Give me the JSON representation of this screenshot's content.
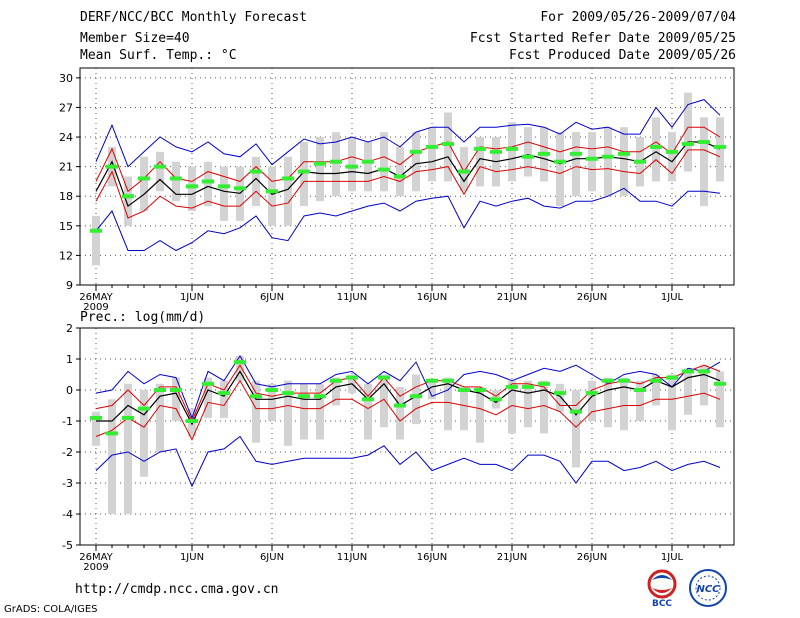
{
  "header": {
    "title": "DERF/NCC/BCC Monthly Forecast",
    "member_size": "Member Size=40",
    "variable": "Mean Surf. Temp.: °C",
    "period": "For 2009/05/26-2009/07/04",
    "started": "Fcst Started Refer Date 2009/05/25",
    "produced": "Fcst Produced Date 2009/05/26"
  },
  "footer": {
    "url": "http://cmdp.ncc.cma.gov.cn",
    "grads": "GrADS: COLA/IGES",
    "logo_bcc": "BCC",
    "logo_ncc": "NCC"
  },
  "colors": {
    "envelope": "#0000cc",
    "spread": "#dd0000",
    "mean": "#000000",
    "median": "#33ee33",
    "box": "#d3d3d3"
  },
  "chart_data": [
    {
      "type": "line",
      "title": "Mean Surf. Temp.: °C",
      "x_tick_labels": [
        "26MAY",
        "1JUN",
        "6JUN",
        "11JUN",
        "16JUN",
        "21JUN",
        "26JUN",
        "1JUL"
      ],
      "x_tick_days": [
        0,
        6,
        11,
        16,
        21,
        26,
        31,
        36
      ],
      "year_label": "2009",
      "days": 40,
      "ylim": [
        9,
        31
      ],
      "yticks": [
        9,
        12,
        15,
        18,
        21,
        24,
        27,
        30
      ],
      "series": [
        {
          "name": "max",
          "values": [
            21.5,
            25.2,
            21.0,
            22.5,
            24.0,
            23.0,
            22.5,
            23.5,
            22.3,
            22.0,
            23.3,
            21.2,
            22.5,
            23.8,
            23.3,
            23.5,
            24.0,
            23.5,
            24.0,
            23.0,
            24.5,
            25.0,
            25.0,
            23.5,
            25.0,
            25.0,
            25.2,
            25.3,
            25.0,
            24.3,
            25.5,
            24.8,
            25.0,
            24.3,
            24.3,
            27.0,
            25.0,
            27.3,
            27.8,
            26.2
          ]
        },
        {
          "name": "upper",
          "values": [
            19.5,
            22.8,
            18.5,
            19.8,
            21.5,
            19.8,
            19.5,
            20.5,
            20.0,
            19.5,
            21.0,
            19.5,
            19.8,
            21.5,
            21.5,
            21.5,
            22.0,
            21.5,
            22.0,
            21.2,
            22.5,
            23.0,
            23.5,
            20.5,
            23.0,
            22.8,
            23.0,
            23.5,
            23.0,
            22.5,
            23.0,
            22.8,
            23.0,
            22.5,
            22.5,
            23.5,
            22.3,
            25.0,
            25.0,
            24.0
          ]
        },
        {
          "name": "mean",
          "values": [
            18.5,
            21.5,
            17.0,
            18.2,
            19.7,
            18.2,
            18.2,
            19.0,
            18.5,
            18.3,
            19.8,
            18.2,
            18.7,
            20.5,
            20.3,
            20.3,
            20.5,
            20.3,
            20.8,
            20.0,
            21.3,
            21.5,
            22.0,
            19.5,
            21.8,
            21.5,
            21.8,
            22.2,
            21.8,
            21.3,
            21.8,
            21.8,
            22.0,
            21.8,
            21.5,
            22.5,
            21.5,
            23.5,
            23.5,
            22.8
          ]
        },
        {
          "name": "lower",
          "values": [
            17.5,
            20.5,
            15.8,
            16.5,
            18.0,
            17.0,
            16.8,
            17.5,
            17.0,
            17.0,
            18.5,
            17.0,
            17.3,
            19.5,
            19.5,
            19.5,
            19.5,
            19.5,
            20.0,
            19.5,
            20.5,
            20.7,
            21.0,
            18.2,
            21.0,
            20.5,
            20.7,
            21.0,
            20.7,
            20.3,
            21.0,
            20.7,
            20.8,
            20.5,
            20.3,
            21.7,
            20.3,
            22.7,
            22.7,
            22.0
          ]
        },
        {
          "name": "min",
          "values": [
            14.5,
            16.5,
            12.5,
            12.5,
            13.5,
            12.5,
            13.3,
            14.5,
            14.2,
            14.8,
            16.0,
            13.8,
            13.5,
            16.0,
            16.3,
            16.0,
            16.5,
            17.0,
            17.3,
            16.5,
            17.5,
            17.8,
            18.0,
            14.8,
            17.5,
            17.0,
            17.5,
            17.8,
            17.0,
            16.8,
            17.5,
            17.5,
            18.0,
            18.8,
            17.5,
            17.5,
            17.0,
            18.5,
            18.5,
            18.3
          ]
        },
        {
          "name": "median",
          "values": [
            14.5,
            21.0,
            18.0,
            19.8,
            21.0,
            19.8,
            19.0,
            19.5,
            19.0,
            18.8,
            20.5,
            18.5,
            19.8,
            20.5,
            21.3,
            21.5,
            21.0,
            21.5,
            20.7,
            20.0,
            22.5,
            23.0,
            23.3,
            20.5,
            22.8,
            22.5,
            22.8,
            22.0,
            22.3,
            21.5,
            22.3,
            21.8,
            22.0,
            22.3,
            21.5,
            23.0,
            22.5,
            23.3,
            23.5,
            23.0
          ]
        },
        {
          "name": "box_low",
          "values": [
            11.0,
            19.0,
            15.0,
            16.5,
            18.5,
            17.5,
            16.5,
            17.0,
            15.5,
            15.5,
            17.0,
            15.0,
            15.0,
            17.0,
            17.5,
            18.0,
            18.5,
            18.5,
            18.5,
            18.0,
            18.5,
            19.5,
            19.5,
            18.5,
            19.0,
            19.0,
            19.5,
            20.0,
            19.5,
            17.0,
            18.0,
            18.5,
            18.0,
            18.0,
            19.0,
            19.5,
            19.5,
            20.5,
            17.0,
            19.5
          ]
        },
        {
          "name": "box_high",
          "values": [
            16.0,
            23.0,
            20.0,
            22.0,
            22.5,
            21.5,
            21.0,
            21.5,
            21.0,
            21.0,
            22.0,
            21.0,
            22.0,
            23.5,
            24.0,
            24.5,
            24.0,
            23.5,
            24.5,
            23.0,
            24.5,
            25.0,
            26.5,
            23.0,
            24.0,
            24.0,
            25.5,
            25.0,
            25.0,
            24.5,
            24.5,
            24.5,
            25.0,
            25.0,
            24.0,
            26.0,
            24.5,
            28.5,
            26.0,
            26.0
          ]
        }
      ]
    },
    {
      "type": "line",
      "title": "Prec.: log(mm/d)",
      "x_tick_labels": [
        "26MAY",
        "1JUN",
        "6JUN",
        "11JUN",
        "16JUN",
        "21JUN",
        "26JUN",
        "1JUL"
      ],
      "x_tick_days": [
        0,
        6,
        11,
        16,
        21,
        26,
        31,
        36
      ],
      "year_label": "2009",
      "days": 40,
      "ylim": [
        -5,
        2
      ],
      "yticks": [
        -5,
        -4,
        -3,
        -2,
        -1,
        0,
        1,
        2
      ],
      "series": [
        {
          "name": "max",
          "values": [
            -0.1,
            0.0,
            0.6,
            0.2,
            0.5,
            0.4,
            -0.9,
            0.6,
            0.3,
            1.1,
            0.2,
            0.1,
            0.2,
            0.2,
            0.2,
            0.5,
            0.6,
            0.2,
            0.6,
            0.3,
            0.9,
            -0.2,
            0.0,
            0.5,
            0.6,
            0.5,
            0.3,
            0.5,
            0.7,
            0.6,
            0.8,
            0.5,
            0.2,
            0.5,
            0.6,
            0.5,
            0.1,
            0.7,
            0.6,
            0.9
          ]
        },
        {
          "name": "upper",
          "values": [
            -0.6,
            -0.5,
            0.0,
            -0.5,
            0.1,
            0.1,
            -1.0,
            0.2,
            0.0,
            0.8,
            -0.1,
            -0.2,
            -0.1,
            -0.1,
            -0.1,
            0.3,
            0.4,
            -0.2,
            0.4,
            -0.2,
            0.1,
            0.3,
            0.3,
            0.1,
            0.1,
            -0.2,
            0.2,
            0.2,
            0.1,
            -0.5,
            -0.5,
            0.0,
            0.2,
            0.3,
            0.2,
            0.4,
            0.4,
            0.6,
            0.8,
            0.6
          ]
        },
        {
          "name": "mean",
          "values": [
            -1.0,
            -1.0,
            -0.5,
            -0.8,
            -0.2,
            -0.1,
            -1.1,
            0.0,
            -0.2,
            0.6,
            -0.3,
            -0.3,
            -0.2,
            -0.3,
            -0.3,
            0.1,
            0.2,
            -0.3,
            0.2,
            -0.5,
            -0.2,
            0.1,
            0.2,
            0.0,
            -0.1,
            -0.4,
            0.0,
            -0.1,
            0.0,
            -0.2,
            -0.8,
            -0.2,
            0.0,
            0.1,
            0.0,
            0.3,
            0.1,
            0.4,
            0.5,
            0.3
          ]
        },
        {
          "name": "lower",
          "values": [
            -1.5,
            -1.3,
            -0.9,
            -1.2,
            -0.5,
            -0.6,
            -1.6,
            -0.4,
            -0.5,
            0.3,
            -0.6,
            -0.6,
            -0.5,
            -0.6,
            -0.6,
            -0.3,
            -0.3,
            -0.6,
            -0.3,
            -1.0,
            -0.6,
            -0.4,
            -0.4,
            -0.5,
            -0.6,
            -0.8,
            -0.5,
            -0.6,
            -0.5,
            -0.7,
            -1.2,
            -0.7,
            -0.6,
            -0.5,
            -0.5,
            -0.3,
            -0.3,
            -0.2,
            -0.1,
            -0.3
          ]
        },
        {
          "name": "min",
          "values": [
            -2.6,
            -2.1,
            -2.0,
            -2.3,
            -2.0,
            -1.9,
            -3.1,
            -2.0,
            -1.9,
            -1.5,
            -2.3,
            -2.4,
            -2.3,
            -2.2,
            -2.2,
            -2.2,
            -2.2,
            -2.1,
            -1.8,
            -2.4,
            -2.0,
            -2.6,
            -2.4,
            -2.2,
            -2.4,
            -2.4,
            -2.6,
            -2.1,
            -2.1,
            -2.3,
            -3.0,
            -2.3,
            -2.3,
            -2.6,
            -2.5,
            -2.3,
            -2.6,
            -2.4,
            -2.3,
            -2.5
          ]
        },
        {
          "name": "median",
          "values": [
            -0.9,
            -1.4,
            -0.9,
            -0.6,
            0.0,
            0.0,
            -1.0,
            0.2,
            -0.1,
            0.9,
            -0.2,
            0.0,
            -0.1,
            -0.2,
            -0.2,
            0.3,
            0.4,
            -0.3,
            0.4,
            -0.5,
            -0.2,
            0.3,
            0.3,
            0.0,
            0.0,
            -0.3,
            0.1,
            0.1,
            0.2,
            -0.1,
            -0.7,
            -0.1,
            0.3,
            0.3,
            0.0,
            0.3,
            0.4,
            0.6,
            0.6,
            0.2
          ]
        },
        {
          "name": "box_low",
          "values": [
            -1.8,
            -4.0,
            -4.0,
            -2.8,
            -2.0,
            -1.0,
            -1.5,
            -0.9,
            -0.9,
            0.3,
            -1.7,
            -1.0,
            -1.8,
            -1.6,
            -1.6,
            -0.5,
            -0.1,
            -1.6,
            -1.2,
            -1.6,
            -1.1,
            -0.3,
            -1.3,
            -1.3,
            -1.7,
            -0.6,
            -1.4,
            -1.2,
            -1.4,
            -0.7,
            -2.5,
            -1.0,
            -1.2,
            -1.3,
            -1.0,
            -0.5,
            -1.3,
            -0.8,
            -0.5,
            -1.2
          ]
        },
        {
          "name": "box_high",
          "values": [
            -0.7,
            -0.3,
            0.2,
            0.0,
            0.2,
            0.4,
            -0.6,
            0.4,
            0.3,
            1.1,
            0.3,
            0.2,
            0.3,
            0.2,
            0.2,
            0.4,
            0.5,
            0.2,
            0.5,
            0.1,
            0.5,
            0.3,
            0.4,
            0.1,
            0.1,
            0.0,
            0.3,
            0.3,
            0.3,
            0.2,
            0.0,
            0.3,
            0.4,
            0.4,
            0.3,
            0.5,
            0.5,
            0.7,
            0.8,
            0.6
          ]
        }
      ]
    }
  ]
}
